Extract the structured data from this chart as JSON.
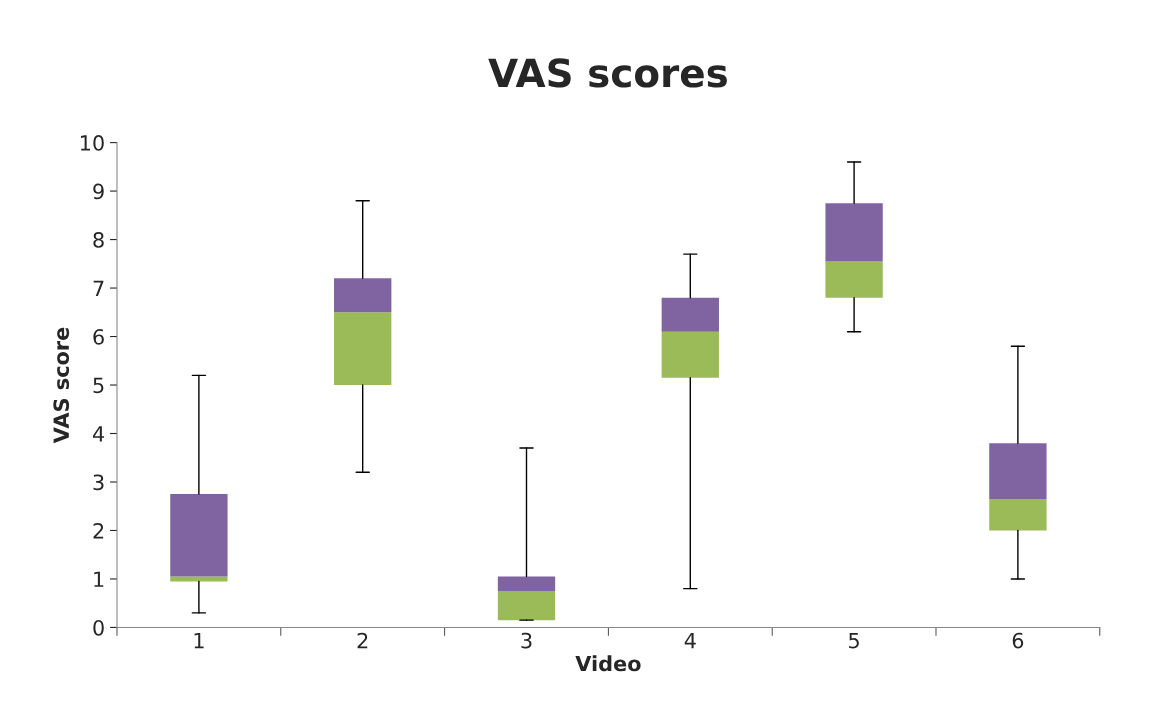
{
  "chart_data": {
    "type": "box",
    "title": "VAS scores",
    "xlabel": "Video",
    "ylabel": "VAS score",
    "categories": [
      "1",
      "2",
      "3",
      "4",
      "5",
      "6"
    ],
    "colors": [
      [
        "#9bbb59",
        "#8064a2"
      ],
      [
        "#9bbb59",
        "#8064a2"
      ],
      [
        "#9bbb59",
        "#8064a2"
      ],
      [
        "#9bbb59",
        "#8064a2"
      ],
      [
        "#9bbb59",
        "#8064a2"
      ],
      [
        "#9bbb59",
        "#8064a2"
      ]
    ],
    "boxes": [
      {
        "low": 0.3,
        "q1": 0.95,
        "median": 1.05,
        "q3": 2.75,
        "high": 5.2
      },
      {
        "low": 3.2,
        "q1": 5.0,
        "median": 6.5,
        "q3": 7.2,
        "high": 8.8
      },
      {
        "low": 0.15,
        "q1": 0.15,
        "median": 0.75,
        "q3": 1.05,
        "high": 3.7
      },
      {
        "low": 0.8,
        "q1": 5.15,
        "median": 6.1,
        "q3": 6.8,
        "high": 7.7
      },
      {
        "low": 6.1,
        "q1": 6.8,
        "median": 7.55,
        "q3": 8.75,
        "high": 9.6
      },
      {
        "low": 1.0,
        "q1": 2.0,
        "median": 2.65,
        "q3": 3.8,
        "high": 5.8
      }
    ],
    "ylim": [
      0,
      10
    ],
    "yticks": [
      0,
      1,
      2,
      3,
      4,
      5,
      6,
      7,
      8,
      9,
      10
    ],
    "grid": false,
    "legend": false
  }
}
